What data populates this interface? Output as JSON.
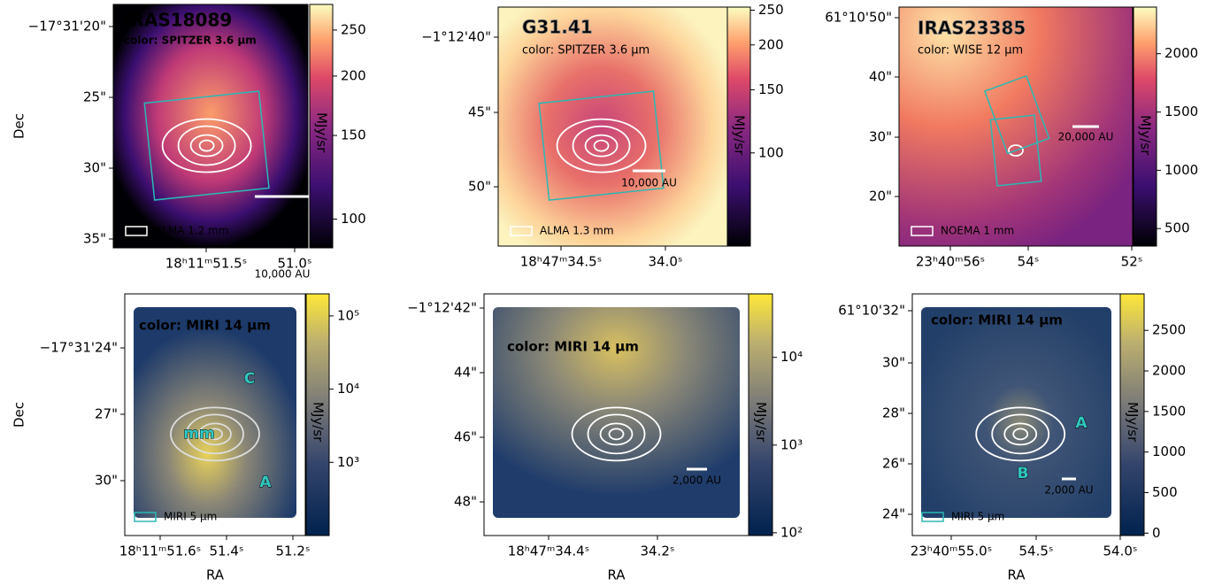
{
  "panels": [
    {
      "title": "IRAS18089",
      "color_label": "color: SPITZER 3.6 μm",
      "scale_bar": "10,000 AU",
      "beam_label": "ALMA 1.2 mm",
      "yticks": [
        "−17°31'20\"",
        "25\"",
        "30\"",
        "35\""
      ],
      "xticks": [
        "18ʰ11ᵐ51.5ˢ",
        "51.0ˢ"
      ],
      "ylabel": "Dec",
      "colorbar": {
        "label": "MJy/sr",
        "scale": "log",
        "lim": [
          87,
          283
        ],
        "ticks": [
          100,
          150,
          200,
          250
        ]
      }
    },
    {
      "title": "G31.41",
      "color_label": "color: SPITZER 3.6 μm",
      "scale_bar": "10,000 AU",
      "beam_label": "ALMA 1.3 mm",
      "yticks": [
        "−1°12'40\"",
        "45\"",
        "50\""
      ],
      "xticks": [
        "18ʰ47ᵐ34.5ˢ",
        "34.0ˢ"
      ],
      "colorbar": {
        "label": "MJy/sr",
        "scale": "log",
        "lim": [
          55,
          255
        ],
        "ticks": [
          100,
          150,
          200,
          250
        ]
      }
    },
    {
      "title": "IRAS23385",
      "color_label": "color: WISE 12 μm",
      "scale_bar": "20,000 AU",
      "beam_label": "NOEMA 1 mm",
      "yticks": [
        "61°10'50\"",
        "40\"",
        "30\"",
        "20\""
      ],
      "xticks": [
        "23ʰ40ᵐ56ˢ",
        "54ˢ",
        "52ˢ"
      ],
      "colorbar": {
        "label": "MJy/sr",
        "scale": "linear",
        "lim": [
          350,
          2400
        ],
        "ticks": [
          500,
          1000,
          1500,
          2000
        ]
      }
    },
    {
      "color_label": "color: MIRI 14 μm",
      "beam_label": "MIRI 5 μm",
      "sources": [
        "C",
        "mm",
        "A"
      ],
      "yticks": [
        "−17°31'24\"",
        "27\"",
        "30\""
      ],
      "xticks": [
        "18ʰ11ᵐ51.6ˢ",
        "51.4ˢ",
        "51.2ˢ"
      ],
      "ylabel": "Dec",
      "xlabel": "RA",
      "colorbar": {
        "label": "MJy/sr",
        "scale": "log",
        "lim": [
          100,
          200000
        ],
        "ticks": [
          {
            "value": 1000,
            "label": "10³"
          },
          {
            "value": 10000,
            "label": "10⁴"
          },
          {
            "value": 100000,
            "label": "10⁵"
          }
        ]
      }
    },
    {
      "color_label": "color: MIRI 14 μm",
      "scale_bar": "2,000 AU",
      "yticks": [
        "−1°12'42\"",
        "44\"",
        "46\"",
        "48\""
      ],
      "xticks": [
        "18ʰ47ᵐ34.4ˢ",
        "34.2ˢ"
      ],
      "xlabel": "RA",
      "colorbar": {
        "label": "MJy/sr",
        "scale": "log",
        "lim": [
          93,
          53000
        ],
        "ticks": [
          {
            "value": 100,
            "label": "10²"
          },
          {
            "value": 1000,
            "label": "10³"
          },
          {
            "value": 10000,
            "label": "10⁴"
          }
        ]
      }
    },
    {
      "color_label": "color: MIRI 14 μm",
      "scale_bar": "2,000 AU",
      "beam_label": "MIRI 5 μm",
      "sources": [
        "A",
        "B"
      ],
      "yticks": [
        "61°10'32\"",
        "30\"",
        "28\"",
        "26\"",
        "24\""
      ],
      "xticks": [
        "23ʰ40ᵐ55.0ˢ",
        "54.5ˢ",
        "54.0ˢ"
      ],
      "xlabel": "RA",
      "colorbar": {
        "label": "MJy/sr",
        "scale": "linear",
        "lim": [
          -30,
          2950
        ],
        "ticks": [
          0,
          500,
          1000,
          1500,
          2000,
          2500
        ]
      }
    }
  ]
}
